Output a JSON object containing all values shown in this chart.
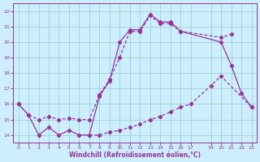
{
  "xlabel": "Windchill (Refroidissement éolien,°C)",
  "bg_color": "#cceeff",
  "line_color": "#993399",
  "grid_color": "#99ccbb",
  "ylim": [
    13.5,
    22.5
  ],
  "xlim": [
    -0.5,
    23.5
  ],
  "yticks": [
    14,
    15,
    16,
    17,
    18,
    19,
    20,
    21,
    22
  ],
  "xtick_positions": [
    0,
    1,
    2,
    3,
    4,
    5,
    6,
    7,
    8,
    9,
    10,
    11,
    12,
    13,
    14,
    15,
    16,
    17,
    19,
    20,
    21,
    22,
    23
  ],
  "xtick_labels": [
    "0",
    "1",
    "2",
    "3",
    "4",
    "5",
    "6",
    "7",
    "8",
    "9",
    "10",
    "11",
    "12",
    "13",
    "14",
    "15",
    "16",
    "17",
    "19",
    "20",
    "21",
    "22",
    "23"
  ],
  "line1_x": [
    0,
    1,
    2,
    3,
    4,
    5,
    6,
    7,
    8,
    9,
    10,
    11,
    12,
    13,
    14,
    15,
    16,
    20,
    21
  ],
  "line1_y": [
    16.0,
    15.3,
    15.0,
    15.2,
    15.0,
    15.1,
    15.0,
    15.0,
    16.6,
    17.6,
    19.0,
    20.7,
    20.7,
    21.7,
    21.2,
    21.2,
    20.7,
    20.3,
    20.5
  ],
  "line2_x": [
    0,
    1,
    2,
    3,
    4,
    5,
    6,
    7,
    8,
    9,
    10,
    11,
    12,
    13,
    14,
    15,
    16,
    20,
    21,
    22,
    23
  ],
  "line2_y": [
    16.0,
    15.3,
    14.0,
    14.5,
    14.0,
    14.3,
    14.0,
    14.0,
    16.5,
    17.5,
    20.0,
    20.8,
    20.8,
    21.8,
    21.3,
    21.3,
    20.7,
    20.0,
    18.5,
    16.7,
    15.8
  ],
  "line3_x": [
    7,
    8,
    9,
    10,
    11,
    12,
    13,
    14,
    15,
    16,
    17,
    19,
    20,
    23
  ],
  "line3_y": [
    14.0,
    14.0,
    14.2,
    14.3,
    14.5,
    14.7,
    15.0,
    15.2,
    15.5,
    15.8,
    16.0,
    17.2,
    17.8,
    15.8
  ]
}
